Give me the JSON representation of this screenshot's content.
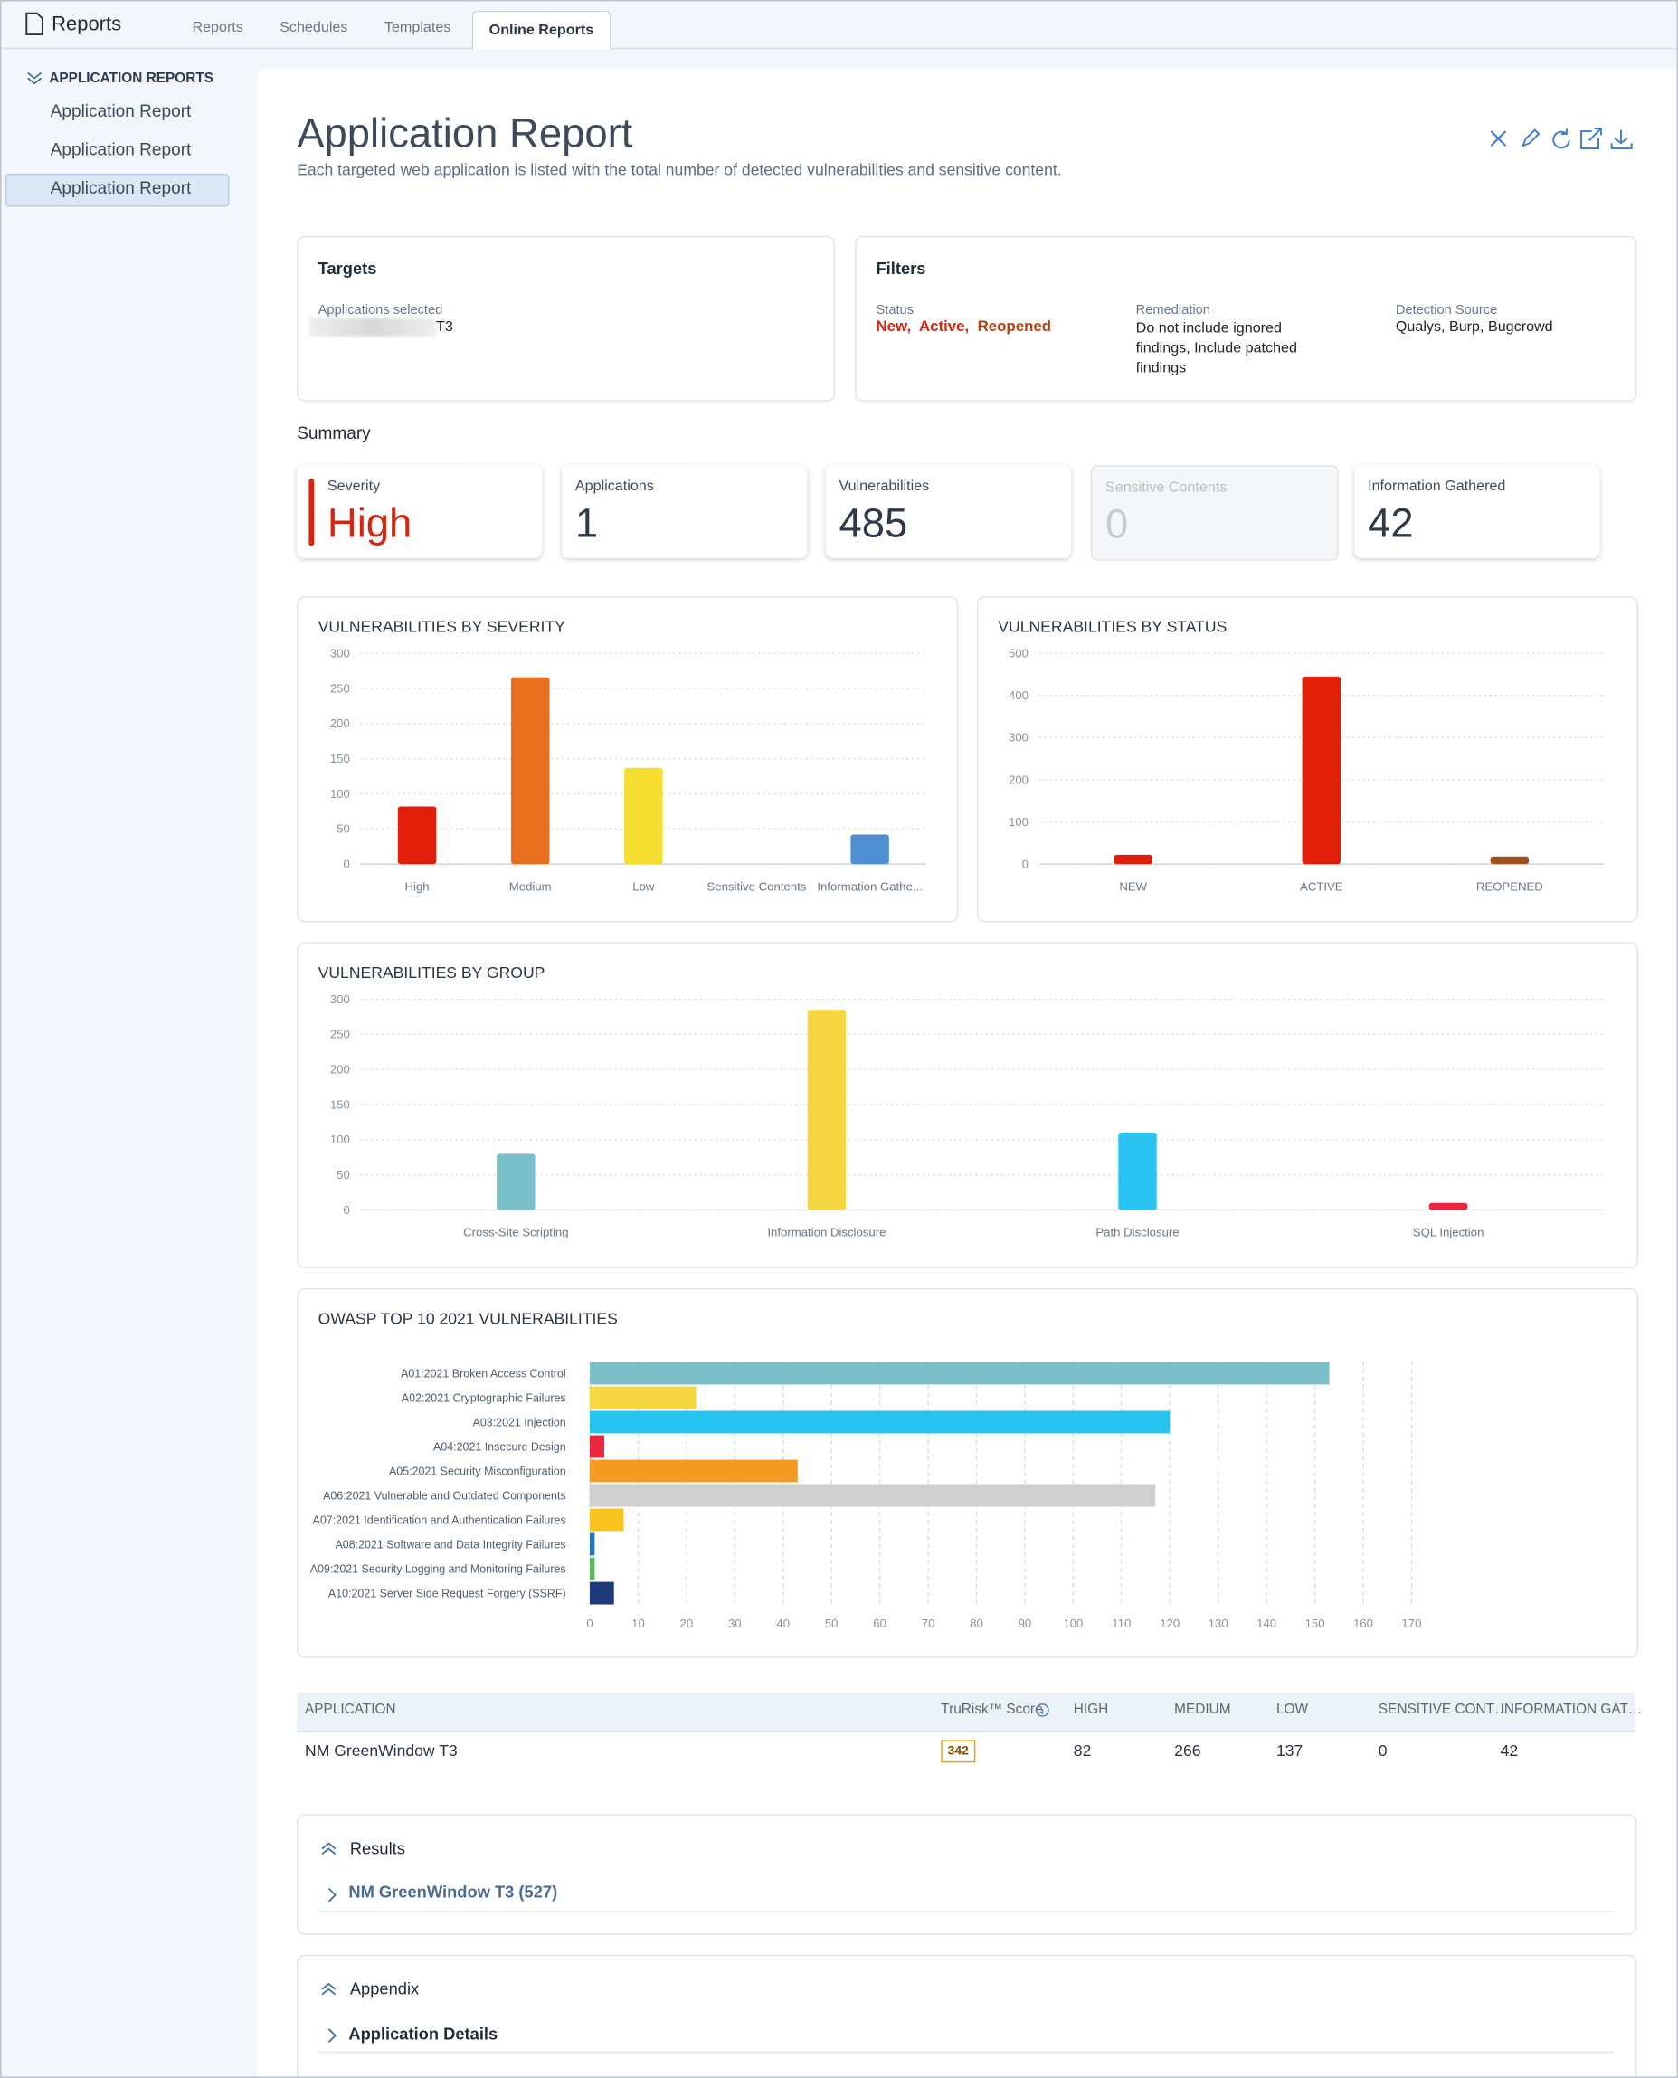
{
  "header": {
    "title": "Reports",
    "tabs": [
      "Reports",
      "Schedules",
      "Templates",
      "Online Reports"
    ]
  },
  "sidebar": {
    "section": "APPLICATION REPORTS",
    "items": [
      "Application Report",
      "Application Report",
      "Application Report"
    ]
  },
  "report": {
    "title": "Application Report",
    "description": "Each targeted web application is listed with the total number of detected vulnerabilities and sensitive content."
  },
  "targets": {
    "title": "Targets",
    "label": "Applications selected",
    "value": "T3"
  },
  "filters": {
    "title": "Filters",
    "status_label": "Status",
    "status": [
      "New,",
      "Active,",
      "Reopened"
    ],
    "remediation_label": "Remediation",
    "remediation": "Do not include ignored findings, Include patched findings",
    "source_label": "Detection Source",
    "source": "Qualys, Burp, Bugcrowd"
  },
  "summary": {
    "title": "Summary",
    "cards": [
      {
        "label": "Severity",
        "value": "High"
      },
      {
        "label": "Applications",
        "value": 1
      },
      {
        "label": "Vulnerabilities",
        "value": 485
      },
      {
        "label": "Sensitive Contents",
        "value": 0
      },
      {
        "label": "Information Gathered",
        "value": 42
      }
    ]
  },
  "chart_data": [
    {
      "type": "bar",
      "title": "VULNERABILITIES BY SEVERITY",
      "categories": [
        "High",
        "Medium",
        "Low",
        "Sensitive Contents",
        "Information Gathe..."
      ],
      "values": [
        82,
        266,
        137,
        0,
        42
      ],
      "colors": [
        "#e01e0a",
        "#e8701f",
        "#f5de30",
        "#e01e0a",
        "#4f8fd1"
      ],
      "ylim": [
        0,
        300
      ],
      "yticks": [
        0,
        50,
        100,
        150,
        200,
        250,
        300
      ],
      "grid": true
    },
    {
      "type": "bar",
      "title": "VULNERABILITIES BY STATUS",
      "categories": [
        "NEW",
        "ACTIVE",
        "REOPENED"
      ],
      "values": [
        22,
        445,
        18
      ],
      "colors": [
        "#e01e0a",
        "#e01e0a",
        "#a0501c"
      ],
      "ylim": [
        0,
        500
      ],
      "yticks": [
        0,
        100,
        200,
        300,
        400,
        500
      ],
      "grid": true
    },
    {
      "type": "bar",
      "title": "VULNERABILITIES BY GROUP",
      "categories": [
        "Cross-Site Scripting",
        "Information Disclosure",
        "Path Disclosure",
        "SQL Injection"
      ],
      "values": [
        80,
        285,
        110,
        10
      ],
      "colors": [
        "#7bbfca",
        "#f5d742",
        "#29c4f2",
        "#e8263e"
      ],
      "ylim": [
        0,
        300
      ],
      "yticks": [
        0,
        50,
        100,
        150,
        200,
        250,
        300
      ],
      "grid": true
    },
    {
      "type": "barh",
      "title": "OWASP TOP 10 2021 VULNERABILITIES",
      "categories": [
        "A01:2021 Broken Access Control",
        "A02:2021 Cryptographic Failures",
        "A03:2021 Injection",
        "A04:2021 Insecure Design",
        "A05:2021 Security Misconfiguration",
        "A06:2021 Vulnerable and Outdated Components",
        "A07:2021 Identification and Authentication Failures",
        "A08:2021 Software and Data Integrity Failures",
        "A09:2021 Security Logging and Monitoring Failures",
        "A10:2021 Server Side Request Forgery (SSRF)"
      ],
      "values": [
        153,
        22,
        120,
        3,
        43,
        117,
        7,
        1,
        1,
        5
      ],
      "colors": [
        "#7bbfca",
        "#f5d742",
        "#29c4f2",
        "#e8263e",
        "#f59a23",
        "#d0d0d0",
        "#f7c21d",
        "#1f78b4",
        "#5cb85c",
        "#1f3a7a"
      ],
      "xlim": [
        0,
        170
      ],
      "xticks": [
        0,
        10,
        20,
        30,
        40,
        50,
        60,
        70,
        80,
        90,
        100,
        110,
        120,
        130,
        140,
        150,
        160,
        170
      ],
      "grid": true
    }
  ],
  "table": {
    "columns": [
      "APPLICATION",
      "TruRisk™ Score",
      "HIGH",
      "MEDIUM",
      "LOW",
      "SENSITIVE CONT…",
      "INFORMATION GAT…"
    ],
    "rows": [
      [
        "NM GreenWindow T3",
        342,
        82,
        266,
        137,
        0,
        42
      ]
    ]
  },
  "results": {
    "title": "Results",
    "item": "NM GreenWindow T3 (527)"
  },
  "appendix": {
    "title": "Appendix",
    "item": "Application Details"
  }
}
